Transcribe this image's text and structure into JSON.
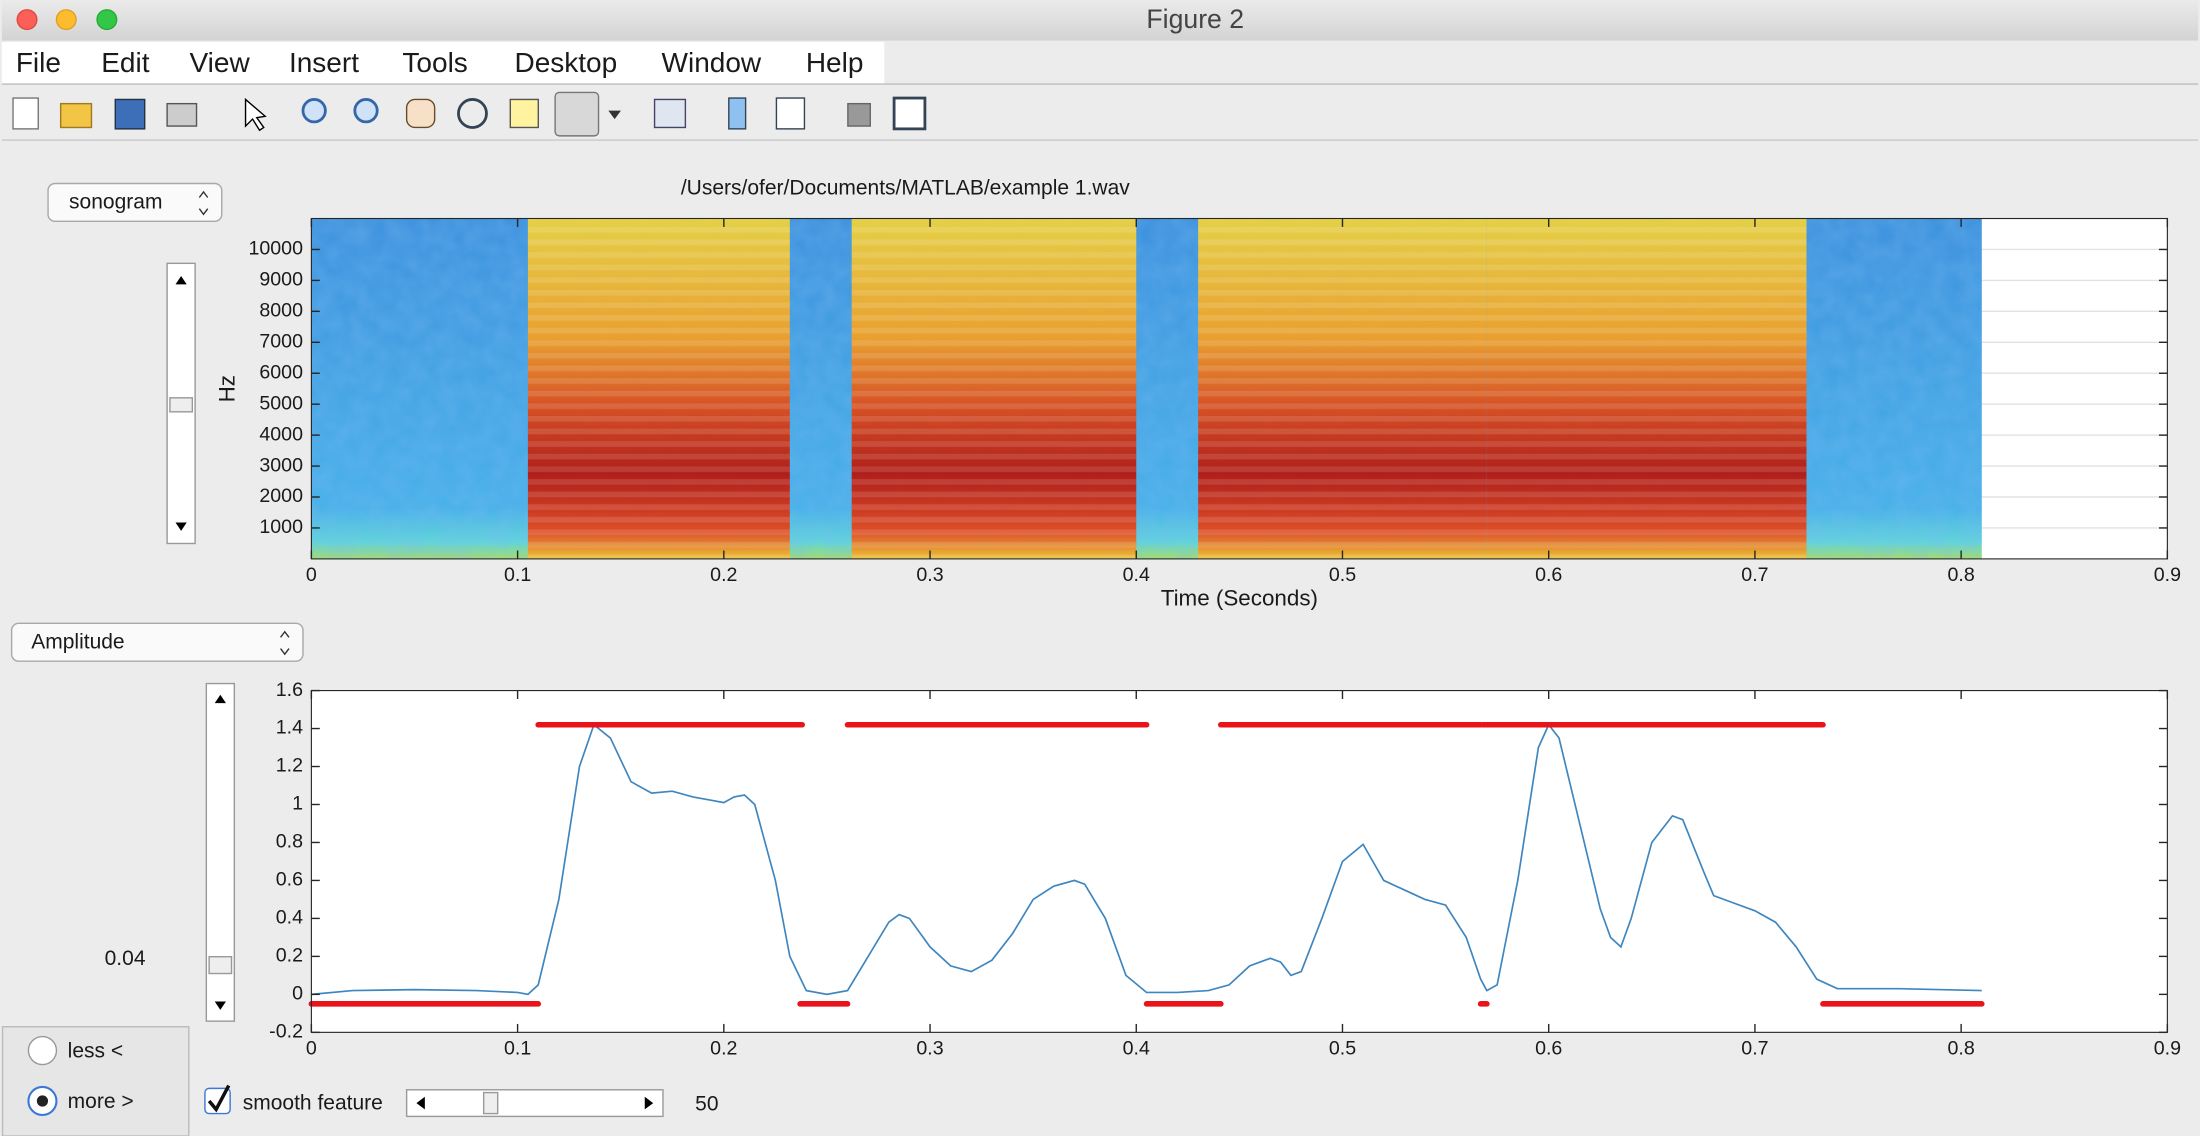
{
  "window": {
    "title": "Figure 2",
    "menu": [
      "File",
      "Edit",
      "View",
      "Insert",
      "Tools",
      "Desktop",
      "Window",
      "Help"
    ]
  },
  "controls": {
    "top_popup": "sonogram",
    "bottom_popup": "Amplitude",
    "threshold": 0.04,
    "radio": [
      "less <",
      "more >"
    ],
    "checkbox": "smooth feature",
    "smooth_value": 50
  },
  "chart_data": [
    {
      "type": "spectrogram",
      "title": "/Users/ofer/Documents/MATLAB/example 1.wav",
      "x_label": "Time (Seconds)",
      "y_label": "Hz",
      "xlim": [
        0,
        0.9
      ],
      "xticks": [
        0,
        0.1,
        0.2,
        0.3,
        0.4,
        0.5,
        0.6,
        0.7,
        0.8,
        0.9
      ],
      "ylim": [
        0,
        11000
      ],
      "yticks": [
        1000,
        2000,
        3000,
        4000,
        5000,
        6000,
        7000,
        8000,
        9000,
        10000
      ],
      "grid": true,
      "image_xlim": [
        0,
        0.81
      ],
      "segments": [
        [
          0.105,
          0.232
        ],
        [
          0.262,
          0.4
        ],
        [
          0.43,
          0.57
        ],
        [
          0.57,
          0.725
        ]
      ]
    },
    {
      "type": "line",
      "color": "#3f86bf",
      "xlim": [
        0,
        0.9
      ],
      "xticks": [
        0,
        0.1,
        0.2,
        0.3,
        0.4,
        0.5,
        0.6,
        0.7,
        0.8,
        0.9
      ],
      "ylim": [
        -0.2,
        1.6
      ],
      "yticks": [
        -0.2,
        0,
        0.2,
        0.4,
        0.6,
        0.8,
        1,
        1.2,
        1.4,
        1.6
      ],
      "x": [
        0,
        0.02,
        0.05,
        0.08,
        0.1,
        0.105,
        0.11,
        0.12,
        0.13,
        0.137,
        0.145,
        0.155,
        0.165,
        0.175,
        0.185,
        0.195,
        0.2,
        0.205,
        0.21,
        0.215,
        0.225,
        0.232,
        0.24,
        0.25,
        0.26,
        0.27,
        0.28,
        0.285,
        0.29,
        0.3,
        0.31,
        0.32,
        0.33,
        0.34,
        0.35,
        0.36,
        0.37,
        0.375,
        0.385,
        0.395,
        0.405,
        0.42,
        0.435,
        0.445,
        0.455,
        0.465,
        0.47,
        0.475,
        0.48,
        0.49,
        0.5,
        0.51,
        0.52,
        0.53,
        0.54,
        0.55,
        0.56,
        0.567,
        0.57,
        0.575,
        0.585,
        0.595,
        0.6,
        0.605,
        0.615,
        0.625,
        0.63,
        0.635,
        0.64,
        0.65,
        0.66,
        0.665,
        0.675,
        0.68,
        0.69,
        0.7,
        0.71,
        0.72,
        0.73,
        0.74,
        0.77,
        0.81
      ],
      "values": [
        0,
        0.02,
        0.025,
        0.02,
        0.01,
        0,
        0.05,
        0.5,
        1.2,
        1.42,
        1.35,
        1.12,
        1.06,
        1.07,
        1.04,
        1.02,
        1.01,
        1.04,
        1.05,
        1,
        0.6,
        0.2,
        0.02,
        0,
        0.02,
        0.2,
        0.38,
        0.42,
        0.4,
        0.25,
        0.15,
        0.12,
        0.18,
        0.32,
        0.5,
        0.57,
        0.6,
        0.58,
        0.4,
        0.1,
        0.01,
        0.01,
        0.02,
        0.05,
        0.15,
        0.19,
        0.17,
        0.1,
        0.12,
        0.4,
        0.7,
        0.79,
        0.6,
        0.55,
        0.5,
        0.47,
        0.3,
        0.08,
        0.02,
        0.05,
        0.6,
        1.3,
        1.42,
        1.35,
        0.9,
        0.45,
        0.3,
        0.25,
        0.4,
        0.8,
        0.94,
        0.92,
        0.65,
        0.52,
        0.48,
        0.44,
        0.38,
        0.25,
        0.08,
        0.03,
        0.03,
        0.02
      ],
      "markers": {
        "color": "#e8141a",
        "levels": [
          {
            "y": 1.42,
            "spans": [
              [
                0.11,
                0.238
              ],
              [
                0.26,
                0.405
              ],
              [
                0.441,
                0.567
              ],
              [
                0.568,
                0.733
              ]
            ]
          },
          {
            "y": -0.05,
            "spans": [
              [
                0,
                0.11
              ],
              [
                0.237,
                0.26
              ],
              [
                0.405,
                0.441
              ],
              [
                0.567,
                0.57
              ],
              [
                0.733,
                0.81
              ]
            ]
          }
        ]
      }
    }
  ]
}
